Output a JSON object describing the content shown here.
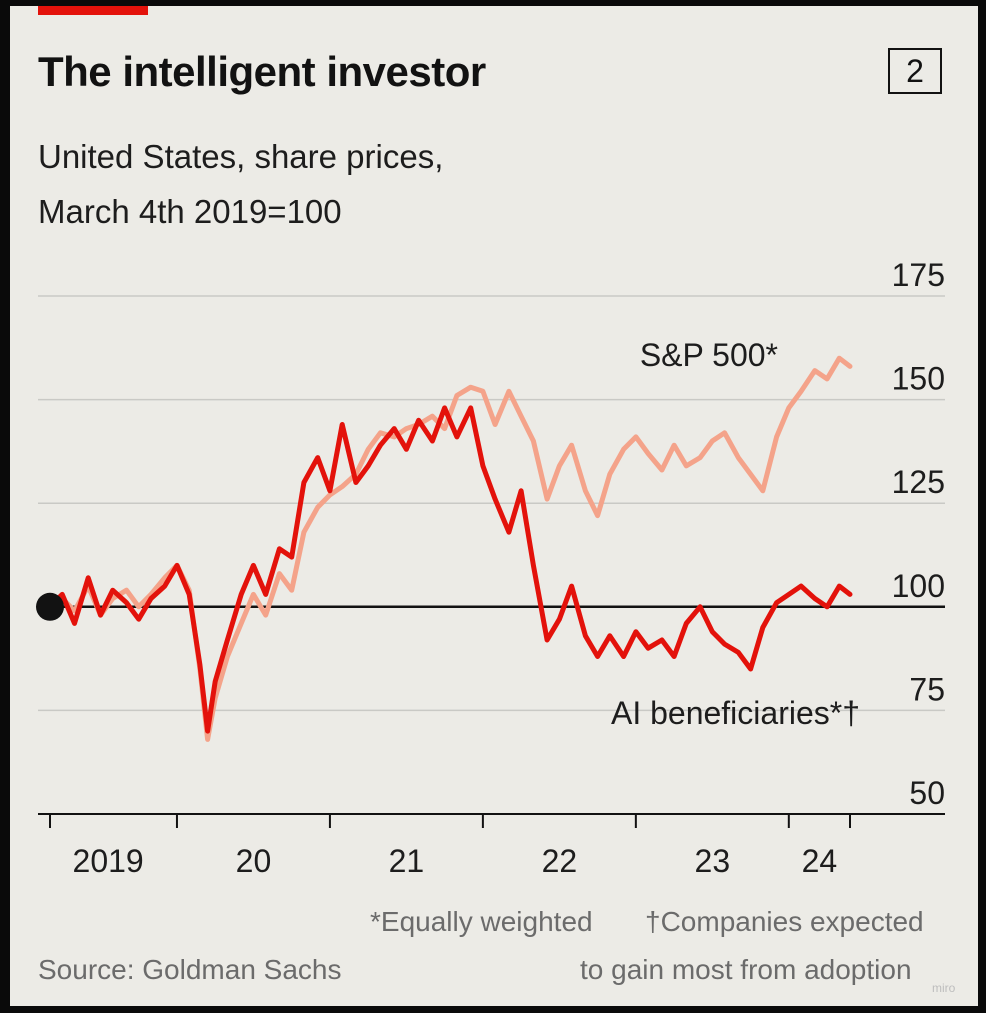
{
  "header": {
    "title": "The intelligent investor",
    "chart_number": "2",
    "subtitle_line1": "United States, share prices,",
    "subtitle_line2": "March 4th 2019=100"
  },
  "footer": {
    "footnote_equal": "*Equally weighted",
    "footnote_ai_line1": "†Companies expected",
    "footnote_ai_line2": "to gain most from adoption",
    "source": "Source: Goldman Sachs",
    "watermark": "miro"
  },
  "colors": {
    "accent": "#e3120b",
    "ai_series": "#e3120b",
    "sp500_series": "#f4a38a",
    "baseline": "#121212",
    "gridline": "#c9c9c5",
    "background": "#ecebe6"
  },
  "chart_data": {
    "type": "line",
    "title": "The intelligent investor",
    "subtitle": "United States, share prices, March 4th 2019=100",
    "ylim": [
      50,
      175
    ],
    "y_ticks": [
      50,
      75,
      100,
      125,
      150,
      175
    ],
    "y_tick_labels": [
      "50",
      "75",
      "100",
      "125",
      "150",
      "175"
    ],
    "baseline_value": 100,
    "xlim": [
      2019.17,
      2024.4
    ],
    "x_ticks": [
      2019,
      2020,
      2021,
      2022,
      2023,
      2024
    ],
    "x_tick_labels": [
      "2019",
      "20",
      "21",
      "22",
      "23",
      "24"
    ],
    "grid": true,
    "series": [
      {
        "name": "S&P 500*",
        "color": "#f4a38a",
        "points": [
          [
            2019.17,
            100
          ],
          [
            2019.25,
            102
          ],
          [
            2019.33,
            99
          ],
          [
            2019.42,
            105
          ],
          [
            2019.5,
            98
          ],
          [
            2019.58,
            102
          ],
          [
            2019.67,
            104
          ],
          [
            2019.75,
            100
          ],
          [
            2019.83,
            103
          ],
          [
            2019.92,
            107
          ],
          [
            2020.0,
            110
          ],
          [
            2020.08,
            104
          ],
          [
            2020.15,
            85
          ],
          [
            2020.2,
            68
          ],
          [
            2020.25,
            78
          ],
          [
            2020.33,
            88
          ],
          [
            2020.42,
            96
          ],
          [
            2020.5,
            103
          ],
          [
            2020.58,
            98
          ],
          [
            2020.67,
            108
          ],
          [
            2020.75,
            104
          ],
          [
            2020.83,
            118
          ],
          [
            2020.92,
            124
          ],
          [
            2021.0,
            127
          ],
          [
            2021.08,
            129
          ],
          [
            2021.17,
            132
          ],
          [
            2021.25,
            138
          ],
          [
            2021.33,
            142
          ],
          [
            2021.42,
            141
          ],
          [
            2021.5,
            143
          ],
          [
            2021.58,
            144
          ],
          [
            2021.67,
            146
          ],
          [
            2021.75,
            143
          ],
          [
            2021.83,
            151
          ],
          [
            2021.92,
            153
          ],
          [
            2022.0,
            152
          ],
          [
            2022.08,
            144
          ],
          [
            2022.17,
            152
          ],
          [
            2022.25,
            146
          ],
          [
            2022.33,
            140
          ],
          [
            2022.42,
            126
          ],
          [
            2022.5,
            134
          ],
          [
            2022.58,
            139
          ],
          [
            2022.67,
            128
          ],
          [
            2022.75,
            122
          ],
          [
            2022.83,
            132
          ],
          [
            2022.92,
            138
          ],
          [
            2023.0,
            141
          ],
          [
            2023.08,
            137
          ],
          [
            2023.17,
            133
          ],
          [
            2023.25,
            139
          ],
          [
            2023.33,
            134
          ],
          [
            2023.42,
            136
          ],
          [
            2023.5,
            140
          ],
          [
            2023.58,
            142
          ],
          [
            2023.67,
            136
          ],
          [
            2023.75,
            132
          ],
          [
            2023.83,
            128
          ],
          [
            2023.92,
            141
          ],
          [
            2024.0,
            148
          ],
          [
            2024.08,
            152
          ],
          [
            2024.17,
            157
          ],
          [
            2024.25,
            155
          ],
          [
            2024.33,
            160
          ],
          [
            2024.4,
            158
          ]
        ]
      },
      {
        "name": "AI beneficiaries*†",
        "color": "#e3120b",
        "points": [
          [
            2019.17,
            100
          ],
          [
            2019.25,
            103
          ],
          [
            2019.33,
            96
          ],
          [
            2019.42,
            107
          ],
          [
            2019.5,
            98
          ],
          [
            2019.58,
            104
          ],
          [
            2019.67,
            101
          ],
          [
            2019.75,
            97
          ],
          [
            2019.83,
            102
          ],
          [
            2019.92,
            105
          ],
          [
            2020.0,
            110
          ],
          [
            2020.08,
            103
          ],
          [
            2020.15,
            86
          ],
          [
            2020.2,
            70
          ],
          [
            2020.25,
            82
          ],
          [
            2020.33,
            92
          ],
          [
            2020.42,
            103
          ],
          [
            2020.5,
            110
          ],
          [
            2020.58,
            103
          ],
          [
            2020.67,
            114
          ],
          [
            2020.75,
            112
          ],
          [
            2020.83,
            130
          ],
          [
            2020.92,
            136
          ],
          [
            2021.0,
            128
          ],
          [
            2021.08,
            144
          ],
          [
            2021.17,
            130
          ],
          [
            2021.25,
            134
          ],
          [
            2021.33,
            139
          ],
          [
            2021.42,
            143
          ],
          [
            2021.5,
            138
          ],
          [
            2021.58,
            145
          ],
          [
            2021.67,
            140
          ],
          [
            2021.75,
            148
          ],
          [
            2021.83,
            141
          ],
          [
            2021.92,
            148
          ],
          [
            2022.0,
            134
          ],
          [
            2022.08,
            126
          ],
          [
            2022.17,
            118
          ],
          [
            2022.25,
            128
          ],
          [
            2022.33,
            110
          ],
          [
            2022.42,
            92
          ],
          [
            2022.5,
            97
          ],
          [
            2022.58,
            105
          ],
          [
            2022.67,
            93
          ],
          [
            2022.75,
            88
          ],
          [
            2022.83,
            93
          ],
          [
            2022.92,
            88
          ],
          [
            2023.0,
            94
          ],
          [
            2023.08,
            90
          ],
          [
            2023.17,
            92
          ],
          [
            2023.25,
            88
          ],
          [
            2023.33,
            96
          ],
          [
            2023.42,
            100
          ],
          [
            2023.5,
            94
          ],
          [
            2023.58,
            91
          ],
          [
            2023.67,
            89
          ],
          [
            2023.75,
            85
          ],
          [
            2023.83,
            95
          ],
          [
            2023.92,
            101
          ],
          [
            2024.0,
            103
          ],
          [
            2024.08,
            105
          ],
          [
            2024.17,
            102
          ],
          [
            2024.25,
            100
          ],
          [
            2024.33,
            105
          ],
          [
            2024.4,
            103
          ]
        ]
      }
    ],
    "annotations": [
      {
        "text": "S&P 500*",
        "series": "S&P 500*"
      },
      {
        "text": "AI beneficiaries*†",
        "series": "AI beneficiaries*†"
      }
    ]
  }
}
